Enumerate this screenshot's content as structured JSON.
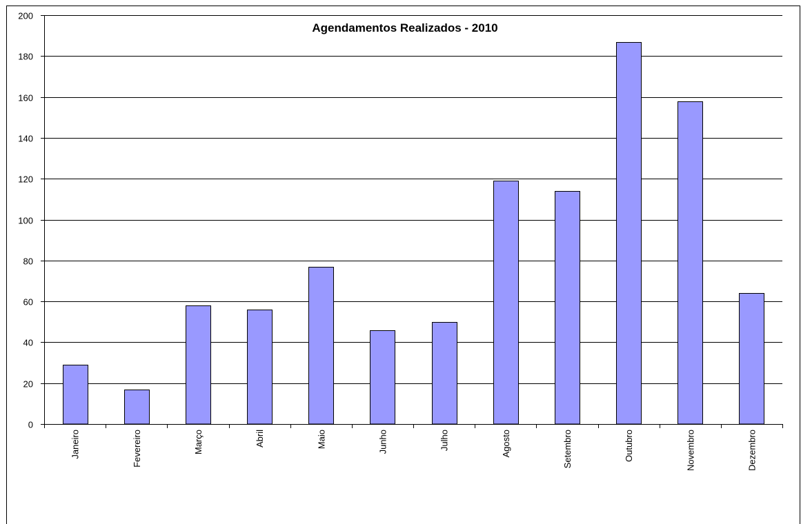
{
  "chart_data": {
    "type": "bar",
    "title": "Agendamentos Realizados - 2010",
    "xlabel": "",
    "ylabel": "",
    "categories": [
      "Janeiro",
      "Fevereiro",
      "Março",
      "Abril",
      "Maio",
      "Junho",
      "Julho",
      "Agosto",
      "Setembro",
      "Outubro",
      "Novembro",
      "Dezembro"
    ],
    "values": [
      29,
      17,
      58,
      56,
      77,
      46,
      50,
      119,
      114,
      187,
      158,
      64
    ],
    "ylim": [
      0,
      200
    ],
    "yticks": [
      0,
      20,
      40,
      60,
      80,
      100,
      120,
      140,
      160,
      180,
      200
    ],
    "grid": true,
    "legend": "none",
    "bar_color": "#9999ff",
    "bar_border_color": "#000000"
  }
}
